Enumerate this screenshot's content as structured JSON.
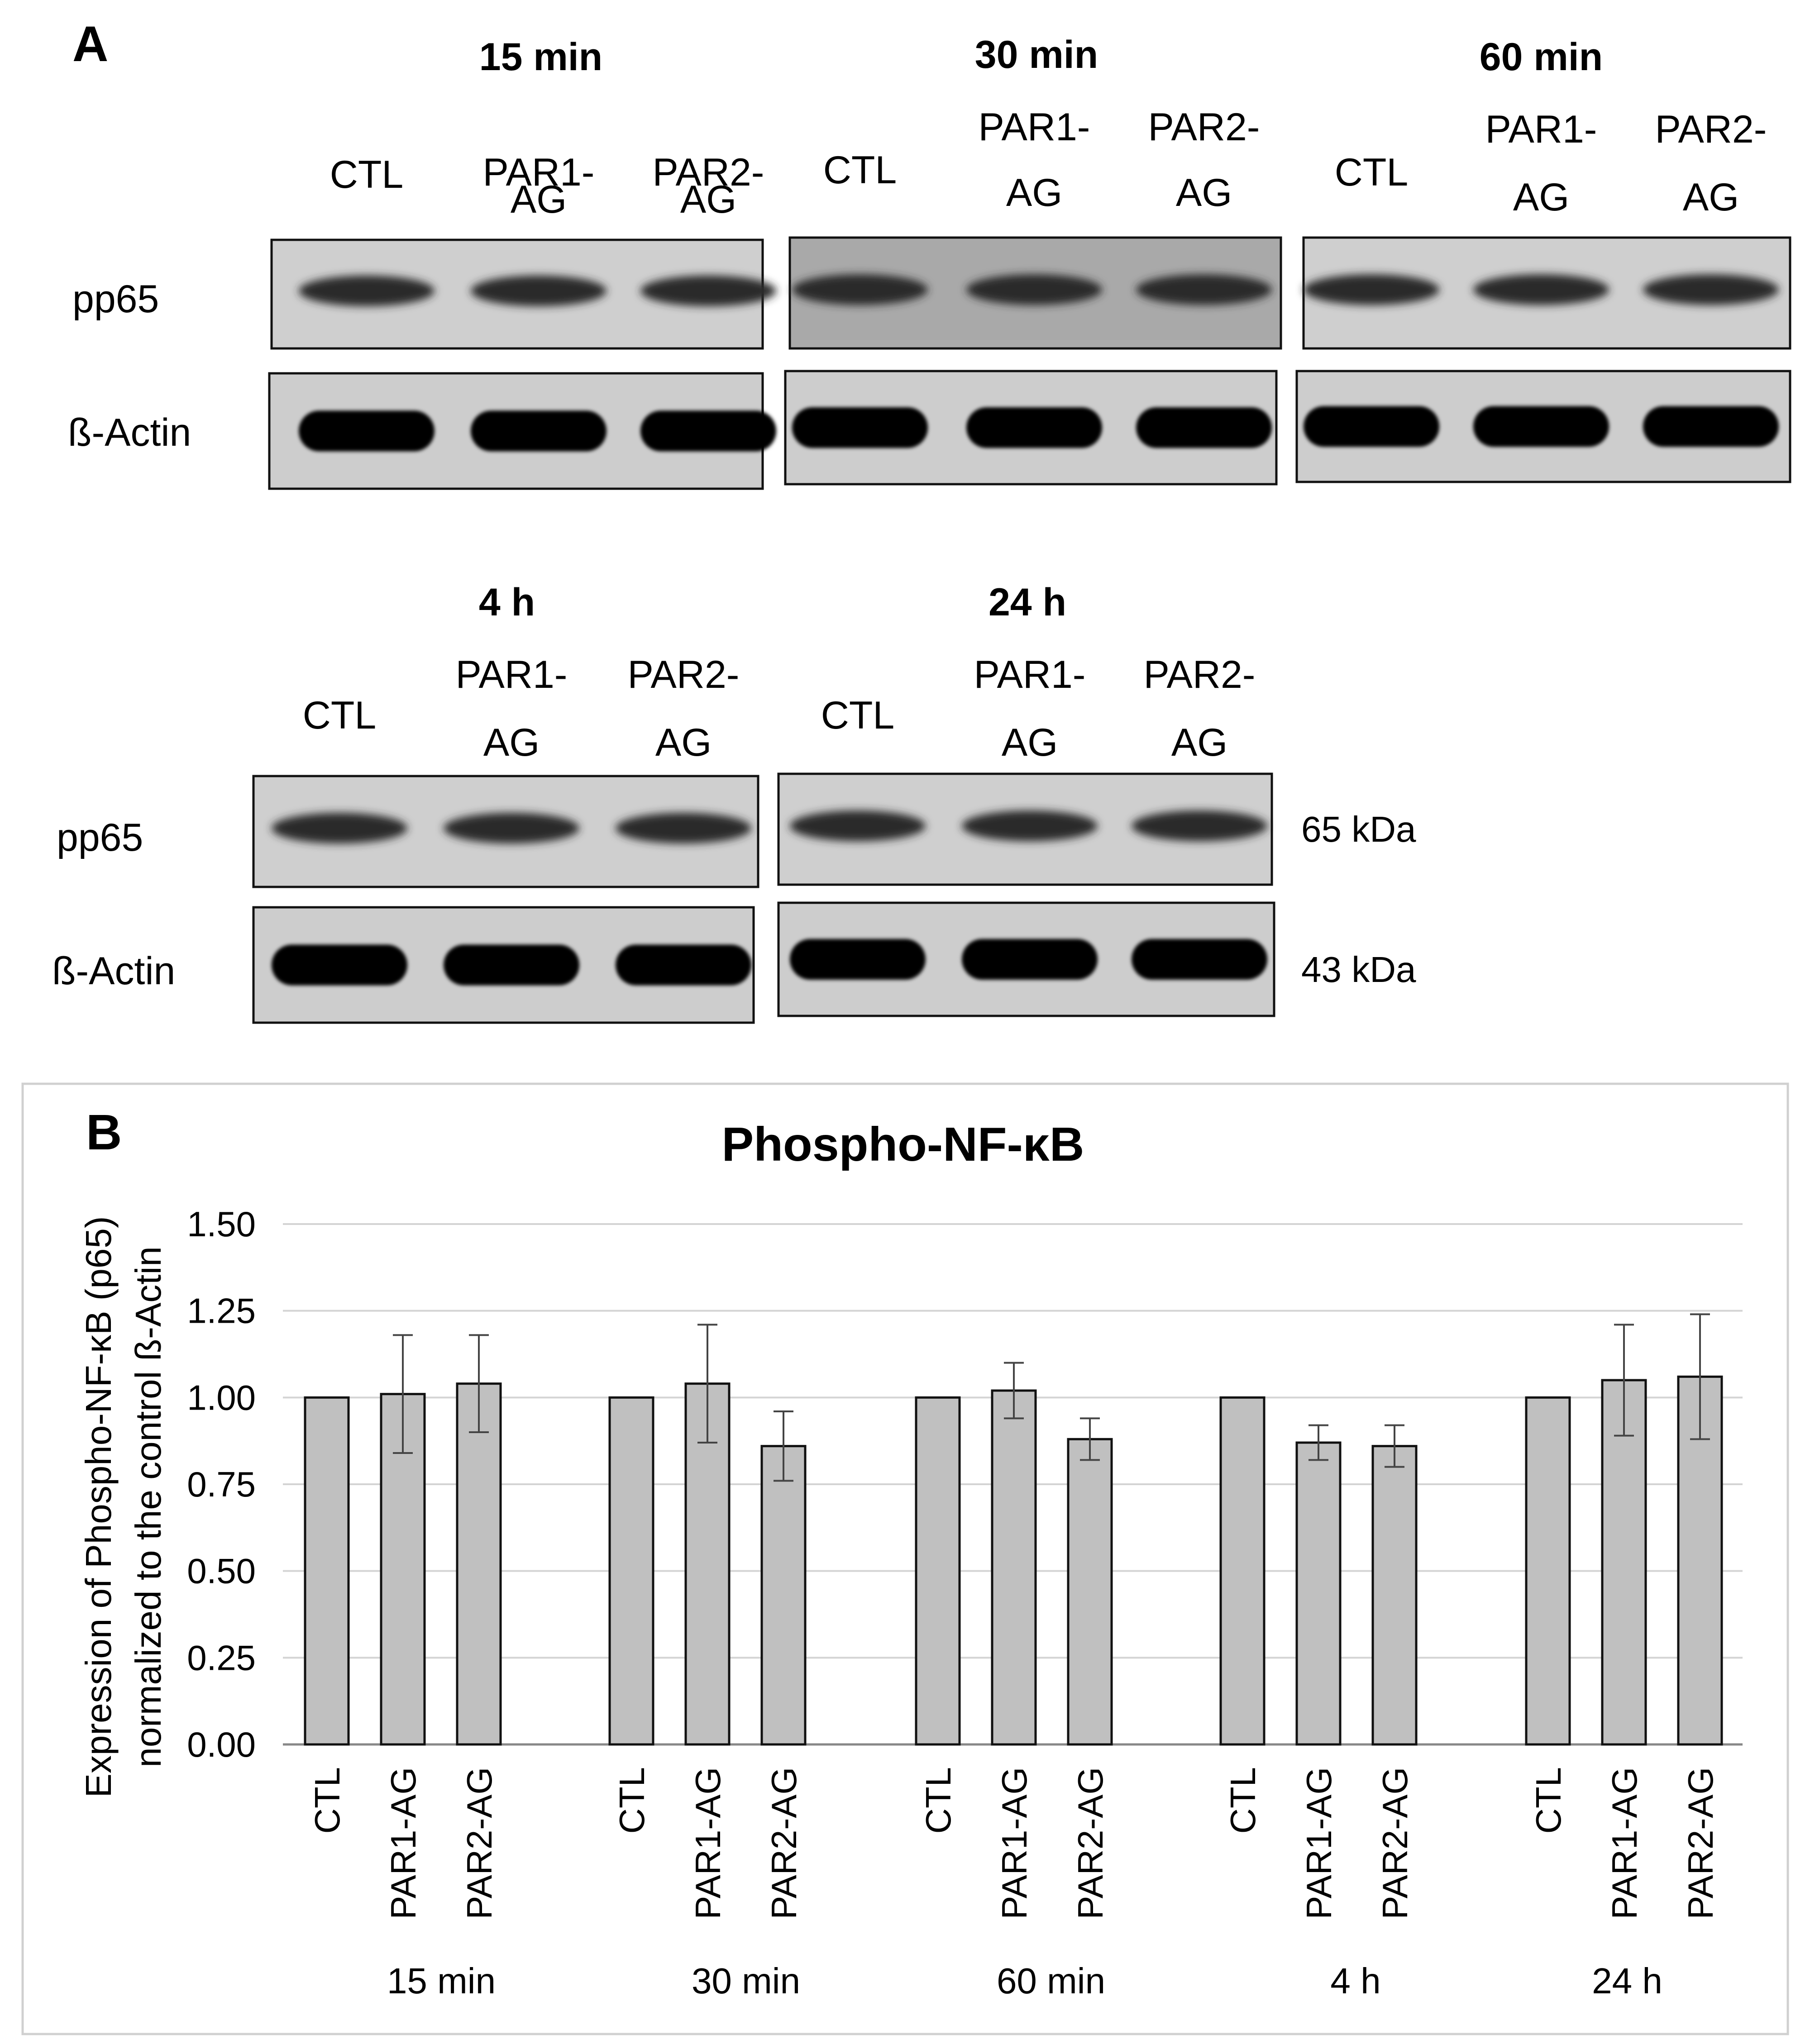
{
  "panel_a": {
    "letter": "A",
    "groups": [
      {
        "time": "15 min",
        "lanes": [
          {
            "l1": "CTL",
            "l2": ""
          },
          {
            "l1": "PAR1-",
            "l2": "AG"
          },
          {
            "l1": "PAR2-",
            "l2": "AG"
          }
        ]
      },
      {
        "time": "30 min",
        "lanes": [
          {
            "l1": "CTL",
            "l2": ""
          },
          {
            "l1": "PAR1-",
            "l2": "AG"
          },
          {
            "l1": "PAR2-",
            "l2": "AG"
          }
        ]
      },
      {
        "time": "60 min",
        "lanes": [
          {
            "l1": "CTL",
            "l2": ""
          },
          {
            "l1": "PAR1-",
            "l2": "AG"
          },
          {
            "l1": "PAR2-",
            "l2": "AG"
          }
        ]
      },
      {
        "time": "4 h",
        "lanes": [
          {
            "l1": "CTL",
            "l2": ""
          },
          {
            "l1": "PAR1-",
            "l2": "AG"
          },
          {
            "l1": "PAR2-",
            "l2": "AG"
          }
        ]
      },
      {
        "time": "24 h",
        "lanes": [
          {
            "l1": "CTL",
            "l2": ""
          },
          {
            "l1": "PAR1-",
            "l2": "AG"
          },
          {
            "l1": "PAR2-",
            "l2": "AG"
          }
        ]
      }
    ],
    "row_labels": {
      "pp65": "pp65",
      "actin": "ß-Actin"
    },
    "mw_labels": {
      "pp65": "65 kDa",
      "actin": "43 kDa"
    }
  },
  "panel_b": {
    "letter": "B"
  },
  "chart_data": {
    "type": "bar",
    "title": "Phospho-NF-κB",
    "ylabel_line1": "Expression of Phospho-NF-κB (p65)",
    "ylabel_line2": "normalized to the control ß-Actin",
    "ylim": [
      0,
      1.5
    ],
    "yticks": [
      "0.00",
      "0.25",
      "0.50",
      "0.75",
      "1.00",
      "1.25",
      "1.50"
    ],
    "grid": true,
    "groups": [
      {
        "label": "15 min",
        "bars": [
          {
            "category": "CTL",
            "value": 1.0,
            "error": 0
          },
          {
            "category": "PAR1-AG",
            "value": 1.01,
            "error": 0.17
          },
          {
            "category": "PAR2-AG",
            "value": 1.04,
            "error": 0.14
          }
        ]
      },
      {
        "label": "30 min",
        "bars": [
          {
            "category": "CTL",
            "value": 1.0,
            "error": 0
          },
          {
            "category": "PAR1-AG",
            "value": 1.04,
            "error": 0.17
          },
          {
            "category": "PAR2-AG",
            "value": 0.86,
            "error": 0.1
          }
        ]
      },
      {
        "label": "60 min",
        "bars": [
          {
            "category": "CTL",
            "value": 1.0,
            "error": 0
          },
          {
            "category": "PAR1-AG",
            "value": 1.02,
            "error": 0.08
          },
          {
            "category": "PAR2-AG",
            "value": 0.88,
            "error": 0.06
          }
        ]
      },
      {
        "label": "4 h",
        "bars": [
          {
            "category": "CTL",
            "value": 1.0,
            "error": 0
          },
          {
            "category": "PAR1-AG",
            "value": 0.87,
            "error": 0.05
          },
          {
            "category": "PAR2-AG",
            "value": 0.86,
            "error": 0.06
          }
        ]
      },
      {
        "label": "24 h",
        "bars": [
          {
            "category": "CTL",
            "value": 1.0,
            "error": 0
          },
          {
            "category": "PAR1-AG",
            "value": 1.05,
            "error": 0.16
          },
          {
            "category": "PAR2-AG",
            "value": 1.06,
            "error": 0.18
          }
        ]
      }
    ],
    "bar_color": "#c0c0c0"
  }
}
